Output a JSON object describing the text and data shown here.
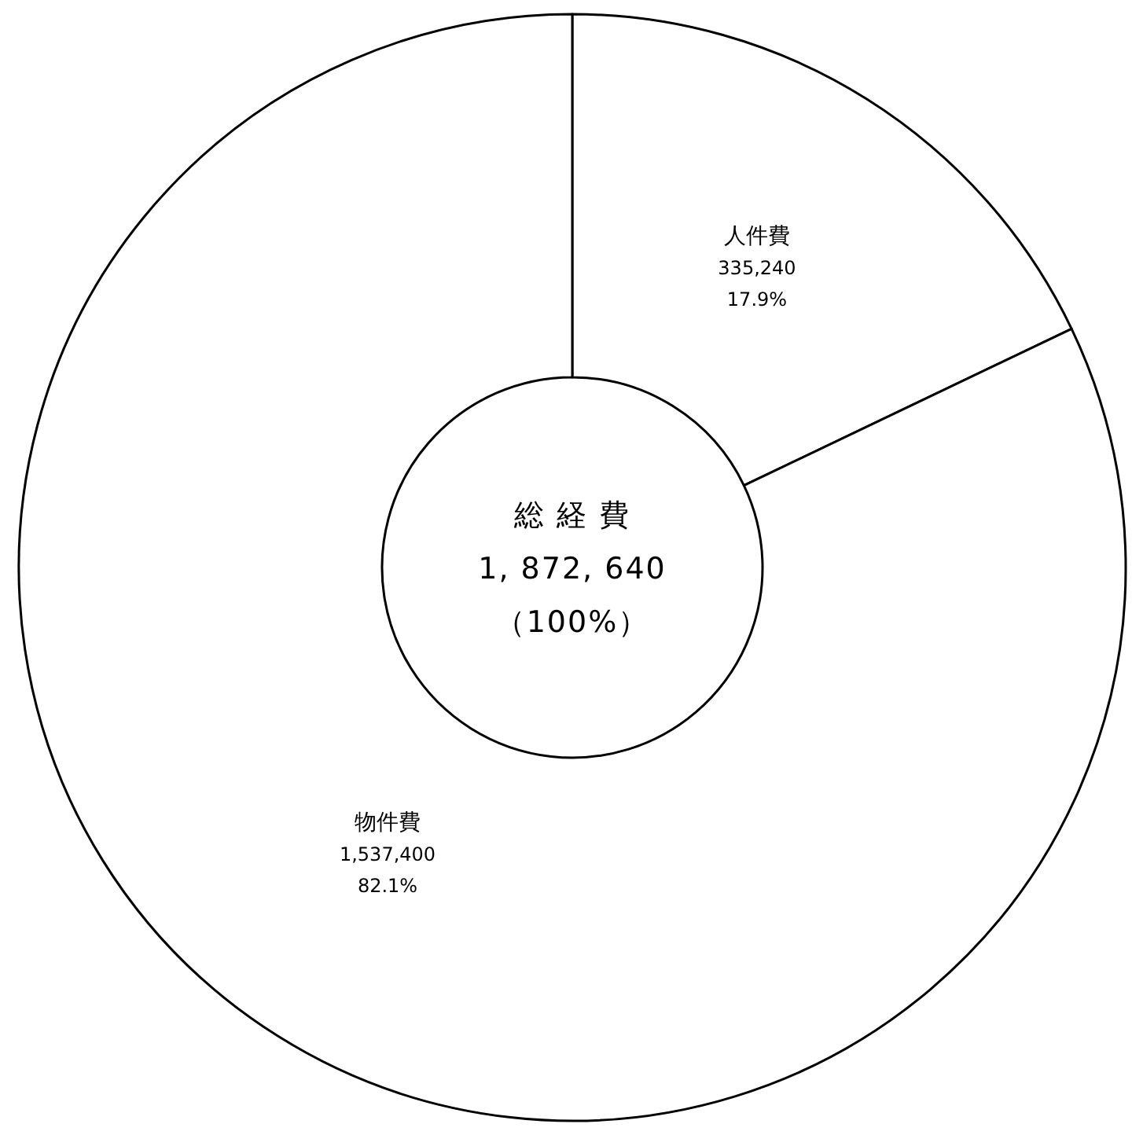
{
  "chart_data": {
    "type": "donut",
    "categories": [
      "人件費",
      "物件費"
    ],
    "values": [
      335240,
      1537400
    ],
    "value_labels": [
      "335,240\n17.9%",
      "1,537,400\n82.1%"
    ],
    "colors": [
      "#ffffff",
      "#ffffff"
    ],
    "annotations": [
      "総 経 費",
      "1, 872, 640",
      "（100%）"
    ]
  }
}
